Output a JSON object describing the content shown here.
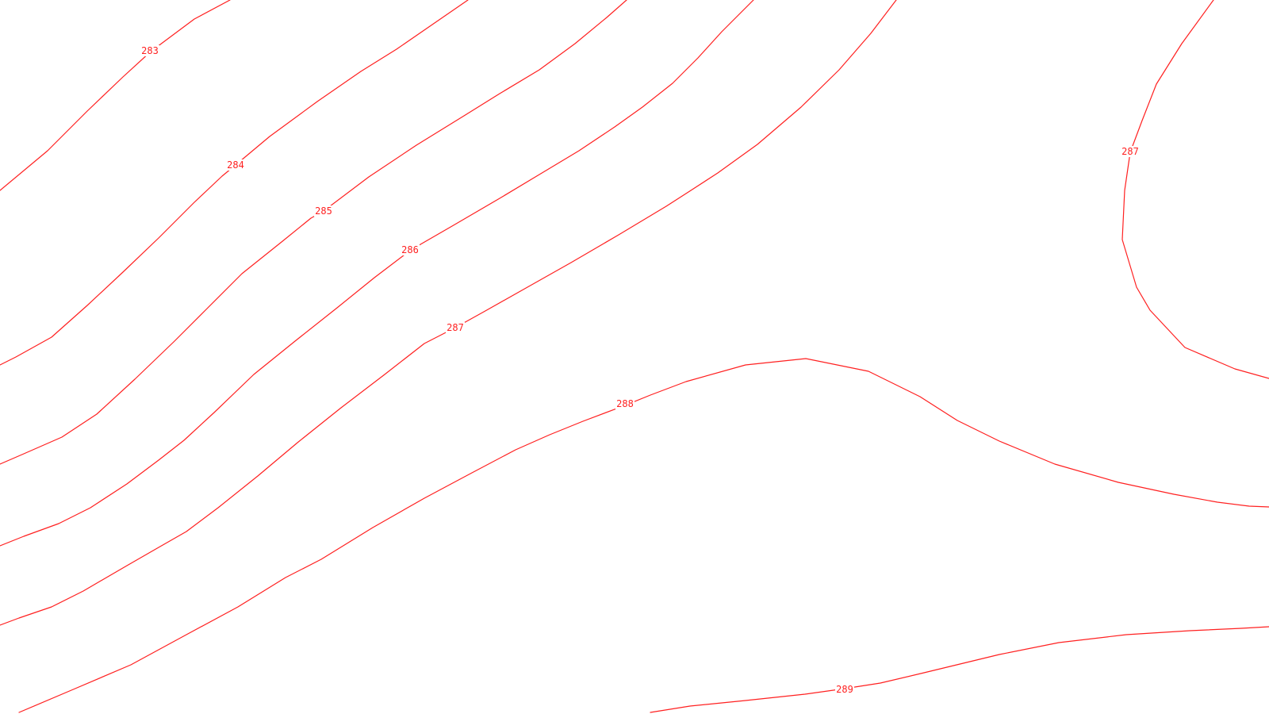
{
  "map": {
    "line_color": "#ff2020",
    "background": "#ffffff",
    "contours": [
      {
        "id": "c283",
        "label": "283"
      },
      {
        "id": "c284",
        "label": "284"
      },
      {
        "id": "c285",
        "label": "285"
      },
      {
        "id": "c286",
        "label": "286"
      },
      {
        "id": "c287",
        "label": "287"
      },
      {
        "id": "c287b",
        "label": "287"
      },
      {
        "id": "c288",
        "label": "288"
      },
      {
        "id": "c289",
        "label": "289"
      }
    ]
  }
}
